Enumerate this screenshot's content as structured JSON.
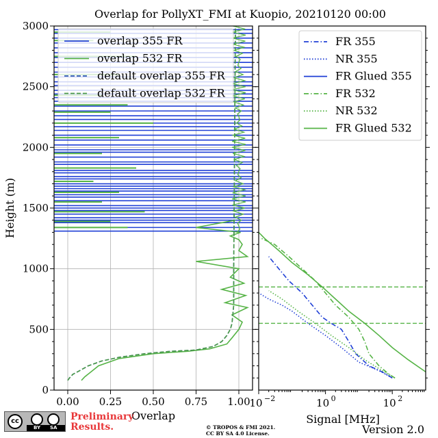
{
  "title": "Overlap for PollyXT_FMI at Kuopio, 20210120 00:00",
  "footer": {
    "preliminary": "Preliminary",
    "results": "Results.",
    "copyright_line1": "© TROPOS & FMI 2021.",
    "copyright_line2": "CC BY SA 4.0 License.",
    "version": "Version 2.0",
    "license_logo": {
      "cc": "cc",
      "by": "BY",
      "sa": "SA"
    }
  },
  "colors": {
    "blue": "#1f3fd6",
    "green": "#55b345",
    "dashed_blue": "#2a55b0",
    "dashed_green": "#4a9a45",
    "grid": "#b0b0b0"
  },
  "chart_data": [
    {
      "type": "line",
      "panel": "overlap",
      "xlabel": "Overlap",
      "ylabel": "Height (m)",
      "xlim": [
        -0.08,
        1.08
      ],
      "ylim": [
        0,
        3000
      ],
      "xticks": [
        0.0,
        0.25,
        0.5,
        0.75,
        1.0
      ],
      "xtick_labels": [
        "0.00",
        "0.25",
        "0.50",
        "0.75",
        "1.00"
      ],
      "yticks": [
        0,
        500,
        1000,
        1500,
        2000,
        2500,
        3000
      ],
      "ytick_labels": [
        "0",
        "500",
        "1000",
        "1500",
        "2000",
        "2500",
        "3000"
      ],
      "grid": true,
      "legend_position": "top-left",
      "series": [
        {
          "name": "overlap 355 FR",
          "color": "#1f3fd6",
          "style": "solid",
          "note": "Invalid (very noisy) above ~1300 m, shown as horizontal traces",
          "noise_heights": [
            1310,
            1340,
            1380,
            1400,
            1420,
            1450,
            1480,
            1500,
            1520,
            1560,
            1590,
            1610,
            1640,
            1660,
            1680,
            1700,
            1740,
            1760,
            1790,
            1810,
            1860,
            1880,
            1920,
            1960,
            1980,
            2020,
            2060,
            2100,
            2140,
            2170,
            2200,
            2230,
            2260,
            2300,
            2340,
            2380,
            2410,
            2440,
            2470,
            2510,
            2540,
            2580,
            2620,
            2660,
            2700,
            2740,
            2780,
            2820,
            2860,
            2900,
            2940,
            2970
          ]
        },
        {
          "name": "overlap 532 FR",
          "color": "#55b345",
          "style": "solid",
          "x": [
            0.08,
            0.1,
            0.18,
            0.3,
            0.5,
            0.7,
            0.83,
            0.93,
            0.96,
            1.0,
            1.02,
            0.96,
            1.05,
            0.92,
            1.04,
            0.9,
            1.03,
            0.95,
            1.0,
            0.75,
            1.05,
            1.0,
            1.02,
            1.0,
            0.95,
            1.01,
            0.75,
            0.98
          ],
          "y": [
            80,
            110,
            200,
            260,
            300,
            320,
            340,
            380,
            430,
            500,
            560,
            620,
            680,
            720,
            780,
            830,
            880,
            930,
            1000,
            1060,
            1100,
            1150,
            1200,
            1240,
            1270,
            1300,
            1340,
            1400
          ]
        },
        {
          "name": "default overlap 355 FR",
          "color": "#2a55b0",
          "style": "dashed",
          "x": [
            0.0,
            0.01,
            0.03,
            0.07,
            0.12,
            0.2,
            0.3,
            0.45,
            0.6,
            0.75,
            0.85,
            0.9,
            0.93,
            0.95,
            0.96,
            0.97,
            0.97,
            0.98
          ],
          "y": [
            80,
            100,
            130,
            160,
            200,
            240,
            270,
            300,
            320,
            330,
            360,
            400,
            450,
            500,
            550,
            700,
            1000,
            3000
          ]
        },
        {
          "name": "default overlap 532 FR",
          "color": "#4a9a45",
          "style": "dashed",
          "x": [
            0.0,
            0.01,
            0.03,
            0.07,
            0.12,
            0.2,
            0.3,
            0.45,
            0.6,
            0.75,
            0.85,
            0.9,
            0.93,
            0.95,
            0.96,
            0.97,
            0.97,
            0.98
          ],
          "y": [
            80,
            100,
            130,
            160,
            200,
            240,
            270,
            300,
            320,
            330,
            360,
            400,
            450,
            500,
            550,
            700,
            1000,
            3000
          ]
        }
      ]
    },
    {
      "type": "line",
      "panel": "signal",
      "xlabel": "Signal [MHz]",
      "xscale": "log",
      "xlim": [
        0.01,
        1000
      ],
      "ylim": [
        0,
        3000
      ],
      "xticks": [
        0.01,
        1,
        100
      ],
      "xtick_labels": [
        "10",
        "10",
        "10"
      ],
      "xtick_exponents": [
        "−2",
        "0",
        "2"
      ],
      "legend_position": "top-right",
      "hlines": [
        {
          "y": 850,
          "color": "#55b345",
          "style": "dashed"
        },
        {
          "y": 550,
          "color": "#55b345",
          "style": "dashed"
        }
      ],
      "series": [
        {
          "name": "FR 355",
          "color": "#1f3fd6",
          "style": "dashdot",
          "x": [
            100,
            50,
            20,
            8,
            5,
            3,
            1.5,
            0.8,
            0.4,
            0.2,
            0.08,
            0.04,
            0.02
          ],
          "y": [
            100,
            150,
            200,
            300,
            400,
            500,
            550,
            600,
            700,
            800,
            900,
            1000,
            1100
          ]
        },
        {
          "name": "NR 355",
          "color": "#1f3fd6",
          "style": "dotted",
          "x": [
            100,
            40,
            10,
            3,
            1,
            0.3,
            0.1,
            0.05,
            0.02,
            0.01
          ],
          "y": [
            100,
            160,
            230,
            350,
            450,
            550,
            650,
            700,
            750,
            800
          ]
        },
        {
          "name": "FR Glued 355",
          "color": "#1f3fd6",
          "style": "solid",
          "x": [],
          "y": []
        },
        {
          "name": "FR 532",
          "color": "#55b345",
          "style": "dashdot",
          "x": [
            120,
            80,
            40,
            20,
            15,
            10,
            5,
            2,
            1,
            0.5,
            0.2,
            0.08,
            0.03,
            0.012
          ],
          "y": [
            100,
            130,
            200,
            300,
            400,
            500,
            600,
            700,
            800,
            900,
            1000,
            1100,
            1200,
            1250
          ]
        },
        {
          "name": "NR 532",
          "color": "#55b345",
          "style": "dotted",
          "x": [
            120,
            50,
            15,
            5,
            1.5,
            0.5,
            0.15,
            0.05,
            0.02
          ],
          "y": [
            100,
            160,
            250,
            350,
            450,
            550,
            650,
            750,
            820
          ]
        },
        {
          "name": "FR Glued 532",
          "color": "#55b345",
          "style": "solid",
          "x": [
            1000,
            300,
            100,
            40,
            15,
            5,
            2,
            0.8,
            0.3,
            0.1,
            0.04,
            0.015,
            0.01
          ],
          "y": [
            150,
            250,
            350,
            450,
            550,
            650,
            750,
            850,
            950,
            1050,
            1150,
            1250,
            1300
          ]
        }
      ]
    }
  ]
}
